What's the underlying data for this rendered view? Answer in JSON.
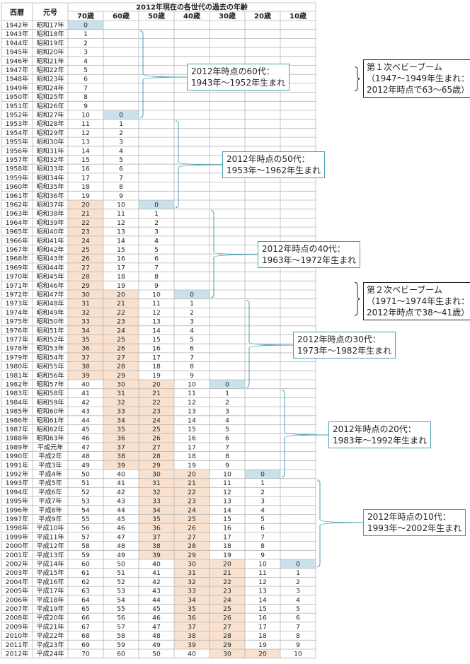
{
  "header": {
    "year_col": "西暦",
    "era_col": "元号",
    "group_title": "2012年現在の各世代の過去の年齢",
    "ages": [
      "70歳",
      "60歳",
      "50歳",
      "40歳",
      "30歳",
      "20歳",
      "10歳"
    ]
  },
  "first_year": 1942,
  "last_year": 2012,
  "ad_suffix": "年",
  "eras": [
    "昭和17年",
    "昭和18年",
    "昭和19年",
    "昭和20年",
    "昭和21年",
    "昭和22年",
    "昭和23年",
    "昭和24年",
    "昭和25年",
    "昭和26年",
    "昭和27年",
    "昭和28年",
    "昭和29年",
    "昭和30年",
    "昭和31年",
    "昭和32年",
    "昭和33年",
    "昭和34年",
    "昭和35年",
    "昭和36年",
    "昭和37年",
    "昭和38年",
    "昭和39年",
    "昭和40年",
    "昭和41年",
    "昭和42年",
    "昭和43年",
    "昭和44年",
    "昭和45年",
    "昭和46年",
    "昭和47年",
    "昭和48年",
    "昭和49年",
    "昭和50年",
    "昭和51年",
    "昭和52年",
    "昭和53年",
    "昭和54年",
    "昭和55年",
    "昭和56年",
    "昭和57年",
    "昭和58年",
    "昭和59年",
    "昭和60年",
    "昭和61年",
    "昭和62年",
    "昭和63年",
    "平成元年",
    "平成2年",
    "平成3年",
    "平成4年",
    "平成5年",
    "平成6年",
    "平成7年",
    "平成8年",
    "平成9年",
    "平成10年",
    "平成11年",
    "平成12年",
    "平成13年",
    "平成14年",
    "平成15年",
    "平成16年",
    "平成17年",
    "平成18年",
    "平成19年",
    "平成20年",
    "平成21年",
    "平成22年",
    "平成23年",
    "平成24年"
  ],
  "birth_years": [
    1942,
    1952,
    1962,
    1972,
    1982,
    1992,
    2002
  ],
  "callouts": [
    {
      "lines": [
        "2012年時点の60代：",
        "1943年〜1952年生まれ"
      ]
    },
    {
      "lines": [
        "2012年時点の50代：",
        "1953年〜1962年生まれ"
      ]
    },
    {
      "lines": [
        "2012年時点の40代：",
        "1963年〜1972年生まれ"
      ]
    },
    {
      "lines": [
        "2012年時点の30代：",
        "1973年〜1982年生まれ"
      ]
    },
    {
      "lines": [
        "2012年時点の20代：",
        "1983年〜1992年生まれ"
      ]
    },
    {
      "lines": [
        "2012年時点の10代：",
        "1993年〜2002年生まれ"
      ]
    }
  ],
  "notes": [
    {
      "lines": [
        "第１次ベビーブーム",
        "（1947〜1949年生まれ：",
        "2012年時点で63〜65歳）"
      ]
    },
    {
      "lines": [
        "第２次ベビーブーム",
        "（1971〜1974年生まれ：",
        "2012年時点で38〜41歳）"
      ]
    }
  ],
  "colors": {
    "zero_fill": "#c9e1ea",
    "band_fill": "#f8e2cf",
    "grid": "#b7b7b7",
    "bracket": "#45a0b0",
    "note_bracket": "#222222"
  }
}
